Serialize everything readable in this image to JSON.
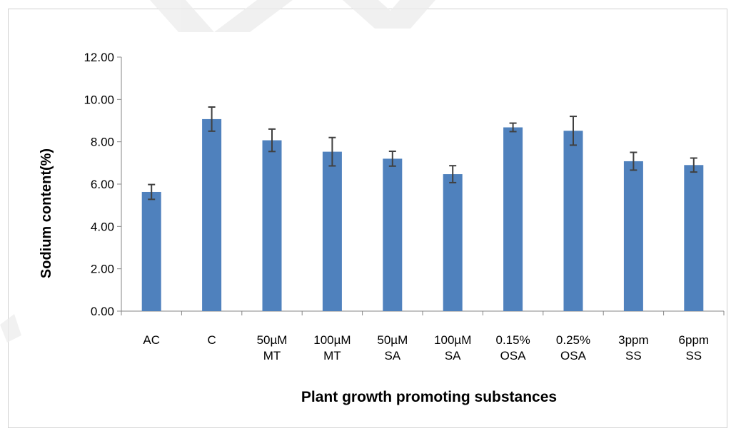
{
  "chart_data": {
    "type": "bar",
    "title": "",
    "xlabel": "Plant growth promoting substances",
    "ylabel": "Sodium content(%)",
    "ylim": [
      0,
      12
    ],
    "yticks": [
      "0.00",
      "2.00",
      "4.00",
      "6.00",
      "8.00",
      "10.00",
      "12.00"
    ],
    "grid": false,
    "legend": "none",
    "bar_color": "#4f81bd",
    "error_color": "#404040",
    "categories": [
      [
        "AC"
      ],
      [
        "C"
      ],
      [
        "50µM",
        "MT"
      ],
      [
        "100µM",
        "MT"
      ],
      [
        "50µM",
        "SA"
      ],
      [
        "100µM",
        "SA"
      ],
      [
        "0.15%",
        "OSA"
      ],
      [
        "0.25%",
        "OSA"
      ],
      [
        "3ppm",
        "SS"
      ],
      [
        "6ppm",
        "SS"
      ]
    ],
    "values": [
      5.63,
      9.07,
      8.07,
      7.53,
      7.2,
      6.47,
      8.68,
      8.52,
      7.08,
      6.9
    ],
    "errors": [
      0.35,
      0.57,
      0.53,
      0.67,
      0.35,
      0.4,
      0.2,
      0.68,
      0.42,
      0.33
    ]
  }
}
